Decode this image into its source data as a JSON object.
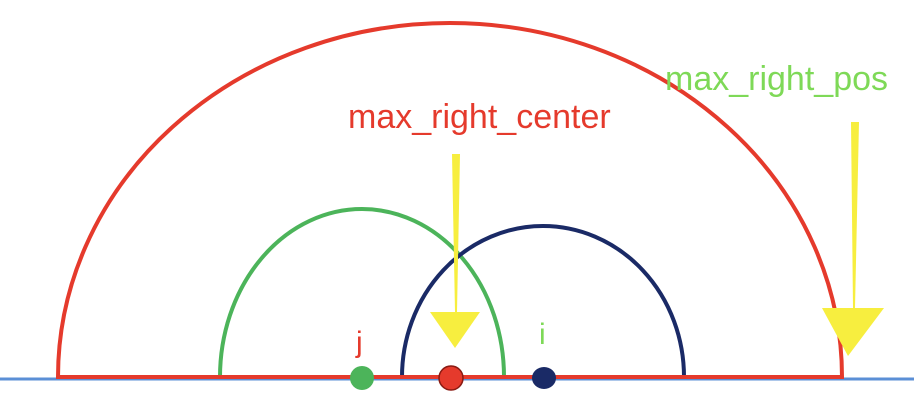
{
  "labels": {
    "max_right_center": "max_right_center",
    "max_right_pos": "max_right_pos",
    "j": "j",
    "i": "i"
  },
  "colors": {
    "red": "#e53a2c",
    "green": "#4cb45a",
    "navy": "#1a2a66",
    "blue_line": "#5b8fd6",
    "yellow": "#f7ee3f",
    "label_green": "#7ed957",
    "label_red": "#e53a2c"
  }
}
